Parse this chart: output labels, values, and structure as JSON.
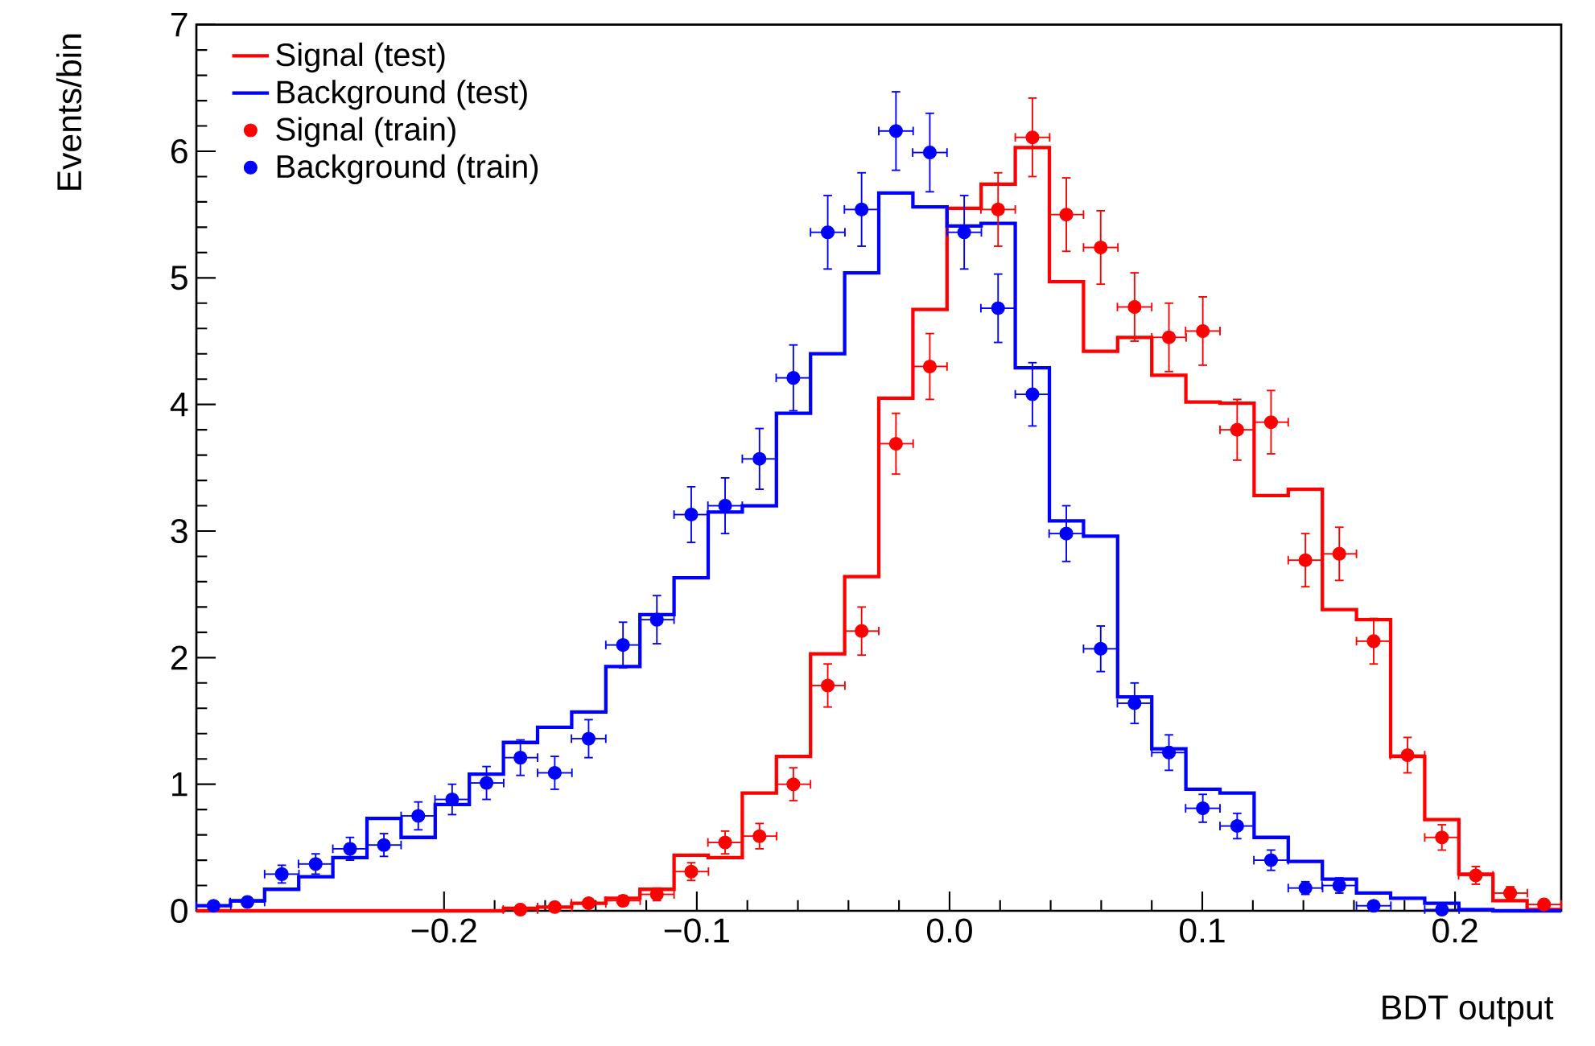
{
  "chart_data": {
    "type": "histogram",
    "xlabel": "BDT output",
    "ylabel": "Events/bin",
    "bins": [
      -0.298,
      -0.2845,
      -0.271,
      -0.2575,
      -0.244,
      -0.2305,
      -0.217,
      -0.2035,
      -0.19,
      -0.1765,
      -0.163,
      -0.1495,
      -0.136,
      -0.1225,
      -0.109,
      -0.0955,
      -0.082,
      -0.0685,
      -0.055,
      -0.0415,
      -0.028,
      -0.0145,
      -0.001,
      0.0125,
      0.026,
      0.0395,
      0.053,
      0.0665,
      0.08,
      0.0935,
      0.107,
      0.1205,
      0.134,
      0.1475,
      0.161,
      0.1745,
      0.188,
      0.2015,
      0.215,
      0.2285,
      0.242
    ],
    "series": [
      {
        "name": "Signal (test)",
        "color": "#ff0000",
        "values": [
          0,
          0,
          0,
          0,
          0,
          0,
          0,
          0,
          0,
          0.02,
          0.03,
          0.06,
          0.1,
          0.17,
          0.44,
          0.42,
          0.93,
          1.22,
          2.03,
          2.64,
          4.05,
          4.75,
          5.55,
          5.74,
          6.03,
          4.97,
          4.42,
          4.53,
          4.23,
          4.02,
          4.01,
          3.28,
          3.33,
          2.38,
          2.3,
          1.22,
          0.72,
          0.29,
          0.08,
          0.01
        ]
      },
      {
        "name": "Background (test)",
        "color": "#0000ff",
        "values": [
          0.04,
          0.08,
          0.17,
          0.27,
          0.42,
          0.73,
          0.58,
          0.84,
          1.08,
          1.33,
          1.45,
          1.57,
          1.93,
          2.34,
          2.63,
          3.15,
          3.2,
          3.93,
          4.4,
          5.04,
          5.67,
          5.56,
          5.41,
          5.43,
          4.29,
          3.08,
          2.96,
          1.69,
          1.28,
          0.96,
          0.93,
          0.58,
          0.39,
          0.25,
          0.14,
          0.1,
          0.06,
          0.01,
          0,
          0
        ]
      },
      {
        "name": "Signal (train)",
        "type": "scatter",
        "color": "#ff0000",
        "x": [
          -0.1698,
          -0.1562,
          -0.1428,
          -0.1292,
          -0.1158,
          -0.1022,
          -0.0888,
          -0.0752,
          -0.0618,
          -0.0482,
          -0.0348,
          -0.0212,
          -0.0078,
          0.0058,
          0.0192,
          0.0328,
          0.0462,
          0.0598,
          0.0732,
          0.0868,
          0.1002,
          0.1138,
          0.1272,
          0.1408,
          0.1542,
          0.1678,
          0.1812,
          0.1948,
          0.2082,
          0.2218,
          0.2352
        ],
        "values": [
          0.01,
          0.03,
          0.06,
          0.08,
          0.13,
          0.31,
          0.54,
          0.59,
          1.0,
          1.78,
          2.21,
          3.69,
          4.3,
          null,
          5.54,
          6.11,
          5.5,
          5.24,
          4.77,
          4.53,
          4.58,
          3.8,
          3.86,
          2.77,
          2.82,
          2.13,
          1.23,
          0.58,
          0.28,
          0.14,
          0.05
        ],
        "errors": [
          0.01,
          0.02,
          0.03,
          0.04,
          0.05,
          0.07,
          0.09,
          0.1,
          0.13,
          0.17,
          0.19,
          0.24,
          0.26,
          null,
          0.29,
          0.31,
          0.29,
          0.29,
          0.27,
          0.27,
          0.27,
          0.24,
          0.25,
          0.21,
          0.21,
          0.18,
          0.14,
          0.1,
          0.07,
          0.05,
          0.03
        ],
        "xerrors": [
          0.0068,
          0.0068,
          0.0068,
          0.0068,
          0.0068,
          0.0068,
          0.0068,
          0.0068,
          0.0068,
          0.0068,
          0.0068,
          0.0068,
          0.0068,
          null,
          0.0068,
          0.0068,
          0.0068,
          0.0068,
          0.0068,
          0.0068,
          0.0068,
          0.0068,
          0.0068,
          0.0068,
          0.0068,
          0.0068,
          0.0068,
          0.0068,
          0.0068,
          0.0068,
          0.0068
        ]
      },
      {
        "name": "Background (train)",
        "type": "scatter",
        "color": "#0000ff",
        "x": [
          -0.2912,
          -0.2778,
          -0.2642,
          -0.2508,
          -0.2372,
          -0.2238,
          -0.2102,
          -0.1968,
          -0.1832,
          -0.1698,
          -0.1562,
          -0.1428,
          -0.1292,
          -0.1158,
          -0.1022,
          -0.0888,
          -0.0752,
          -0.0618,
          -0.0482,
          -0.0348,
          -0.0212,
          -0.0078,
          0.0058,
          0.0192,
          0.0328,
          0.0462,
          0.0598,
          0.0732,
          0.0868,
          0.1002,
          0.1138,
          0.1272,
          0.1408,
          0.1542,
          0.1678,
          0.1948
        ],
        "values": [
          0.04,
          0.07,
          0.29,
          0.37,
          0.49,
          0.52,
          0.75,
          0.88,
          1.01,
          1.21,
          1.09,
          1.36,
          2.1,
          2.3,
          3.13,
          3.2,
          3.57,
          4.21,
          5.36,
          5.54,
          6.16,
          5.99,
          5.36,
          4.76,
          4.08,
          2.98,
          2.07,
          1.64,
          1.25,
          0.81,
          0.67,
          0.4,
          0.18,
          0.2,
          0.04,
          0.01
        ],
        "errors": [
          0.03,
          0.03,
          0.07,
          0.08,
          0.09,
          0.09,
          0.11,
          0.12,
          0.13,
          0.14,
          0.13,
          0.15,
          0.18,
          0.19,
          0.22,
          0.22,
          0.24,
          0.26,
          0.29,
          0.29,
          0.31,
          0.31,
          0.29,
          0.27,
          0.25,
          0.22,
          0.18,
          0.16,
          0.14,
          0.11,
          0.1,
          0.08,
          0.05,
          0.06,
          0.03,
          0.01
        ],
        "xerrors": [
          0.0068,
          0.0068,
          0.0068,
          0.0068,
          0.0068,
          0.0068,
          0.0068,
          0.0068,
          0.0068,
          0.0068,
          0.0068,
          0.0068,
          0.0068,
          0.0068,
          0.0068,
          0.0068,
          0.0068,
          0.0068,
          0.0068,
          0.0068,
          0.0068,
          0.0068,
          0.0068,
          0.0068,
          0.0068,
          0.0068,
          0.0068,
          0.0068,
          0.0068,
          0.0068,
          0.0068,
          0.0068,
          0.0068,
          0.0068,
          0.0068,
          0.0068
        ]
      }
    ],
    "xlim": [
      -0.298,
      0.242
    ],
    "ylim": [
      0,
      7
    ],
    "xticks": [
      {
        "value": -0.2,
        "label": "−0.2"
      },
      {
        "value": -0.1,
        "label": "−0.1"
      },
      {
        "value": 0.0,
        "label": "0.0"
      },
      {
        "value": 0.1,
        "label": "0.1"
      },
      {
        "value": 0.2,
        "label": "0.2"
      }
    ],
    "yticks": [
      0,
      1,
      2,
      3,
      4,
      5,
      6,
      7
    ],
    "legend": "top left",
    "marker": "circle"
  }
}
